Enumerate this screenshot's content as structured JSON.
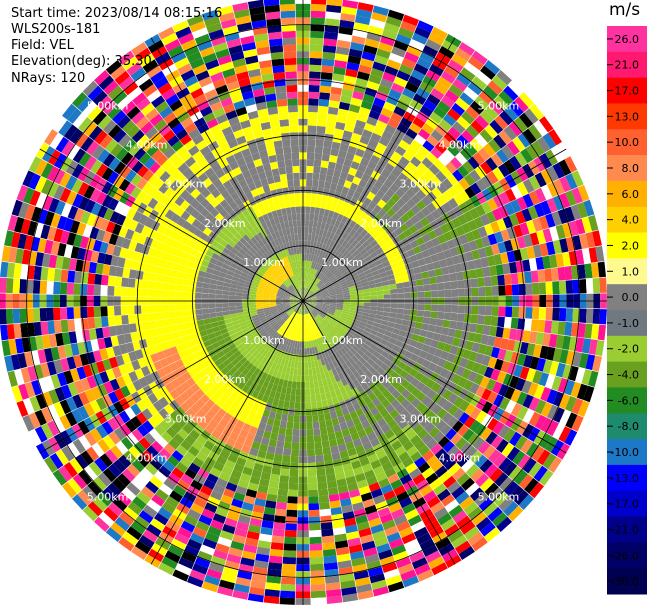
{
  "info": {
    "start_time": "Start time: 2023/08/14 08:15:16",
    "instrument": "WLS200s-181",
    "field": "Field: VEL",
    "elevation": "Elevation(deg): 35.30",
    "nrays": "NRays: 120"
  },
  "chart_data": {
    "type": "heatmap",
    "subtype": "polar-ppi",
    "field": "VEL",
    "nrays": 120,
    "range_rings_km": [
      1.0,
      2.0,
      3.0,
      4.0,
      5.0
    ],
    "range_labels": [
      "1.00km",
      "2.00km",
      "3.00km",
      "4.00km",
      "5.00km"
    ],
    "spoke_angles_deg": [
      0,
      30,
      60,
      90,
      120,
      150,
      180,
      210,
      240,
      270,
      300,
      330
    ],
    "max_range_km": 5.5,
    "colorbar": {
      "unit": "m/s",
      "ticks": [
        "26.0",
        "21.0",
        "17.0",
        "13.0",
        "10.0",
        "8.0",
        "6.0",
        "4.0",
        "2.0",
        "1.0",
        "0.0",
        "-1.0",
        "-2.0",
        "-4.0",
        "-6.0",
        "-8.0",
        "-10.0",
        "-13.0",
        "-17.0",
        "-21.0",
        "-26.0",
        "-30.0"
      ],
      "colors": [
        "#ff33a0",
        "#ff1a70",
        "#ff0000",
        "#ff3a00",
        "#ff6030",
        "#ff8a50",
        "#ffb000",
        "#ffd000",
        "#ffff00",
        "#fffa90",
        "#808080",
        "#707880",
        "#9acd32",
        "#6aa020",
        "#228b22",
        "#1e8a6e",
        "#1e78c8",
        "#0000ff",
        "#0000cd",
        "#00008b",
        "#000066",
        "#000050"
      ]
    }
  }
}
